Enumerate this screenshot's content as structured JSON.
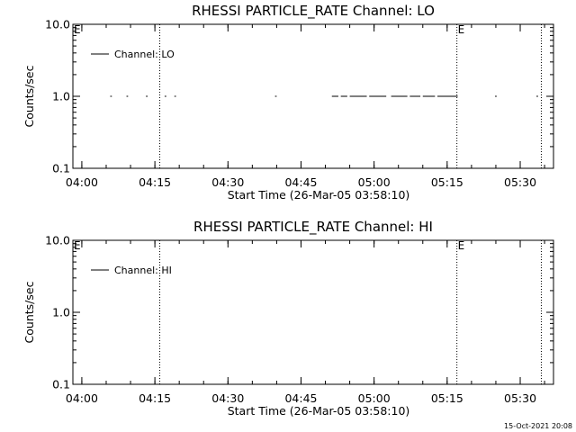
{
  "chart_data": [
    {
      "type": "line",
      "title": "RHESSI PARTICLE_RATE Channel: LO",
      "xlabel": "Start Time (26-Mar-05 03:58:10)",
      "ylabel": "Counts/sec",
      "y_scale": "log",
      "ylim": [
        0.1,
        10.0
      ],
      "xlim": [
        "03:58:10",
        "05:36:50"
      ],
      "xticks": [
        "04:00",
        "04:15",
        "04:30",
        "04:45",
        "05:00",
        "05:15",
        "05:30"
      ],
      "yticks": [
        "0.1",
        "1.0",
        "10.0"
      ],
      "legend": "top-left",
      "grid": false,
      "series": [
        {
          "name": "Channel: LO",
          "color": "#000000",
          "segments": [
            [
              [
                "04:05:50",
                1.0
              ],
              [
                "04:06:10",
                1.0
              ]
            ],
            [
              [
                "04:09:10",
                1.0
              ],
              [
                "04:09:30",
                1.0
              ]
            ],
            [
              [
                "04:13:10",
                1.0
              ],
              [
                "04:13:30",
                1.0
              ]
            ],
            [
              [
                "04:17:00",
                1.0
              ],
              [
                "04:17:20",
                1.0
              ]
            ],
            [
              [
                "04:19:00",
                1.0
              ],
              [
                "04:19:20",
                1.0
              ]
            ],
            [
              [
                "04:39:40",
                1.0
              ],
              [
                "04:40:00",
                1.0
              ]
            ],
            [
              [
                "04:51:20",
                1.0
              ],
              [
                "04:52:40",
                1.0
              ]
            ],
            [
              [
                "04:53:10",
                1.0
              ],
              [
                "04:54:30",
                1.0
              ]
            ],
            [
              [
                "04:55:00",
                1.0
              ],
              [
                "04:58:30",
                1.0
              ]
            ],
            [
              [
                "04:59:00",
                1.0
              ],
              [
                "05:02:30",
                1.0
              ]
            ],
            [
              [
                "05:03:30",
                1.0
              ],
              [
                "05:06:50",
                1.0
              ]
            ],
            [
              [
                "05:07:20",
                1.0
              ],
              [
                "05:09:30",
                1.0
              ]
            ],
            [
              [
                "05:10:00",
                1.0
              ],
              [
                "05:12:30",
                1.0
              ]
            ],
            [
              [
                "05:13:00",
                1.0
              ],
              [
                "05:17:10",
                1.0
              ]
            ],
            [
              [
                "05:24:50",
                1.0
              ],
              [
                "05:25:10",
                1.0
              ]
            ],
            [
              [
                "05:33:20",
                1.0
              ],
              [
                "05:33:40",
                1.0
              ]
            ]
          ]
        }
      ],
      "event_lines": [
        "04:16:00",
        "05:17:00",
        "05:34:20"
      ],
      "event_flags": [
        {
          "label": "E",
          "x": "03:58:10"
        },
        {
          "label": "E",
          "x": "05:17:00"
        }
      ]
    },
    {
      "type": "line",
      "title": "RHESSI PARTICLE_RATE Channel: HI",
      "xlabel": "Start Time (26-Mar-05 03:58:10)",
      "ylabel": "Counts/sec",
      "y_scale": "log",
      "ylim": [
        0.1,
        10.0
      ],
      "xlim": [
        "03:58:10",
        "05:36:50"
      ],
      "xticks": [
        "04:00",
        "04:15",
        "04:30",
        "04:45",
        "05:00",
        "05:15",
        "05:30"
      ],
      "yticks": [
        "0.1",
        "1.0",
        "10.0"
      ],
      "legend": "top-left",
      "grid": false,
      "series": [
        {
          "name": "Channel: HI",
          "color": "#000000",
          "segments": []
        }
      ],
      "event_lines": [
        "04:16:00",
        "05:17:00",
        "05:34:20"
      ],
      "event_flags": [
        {
          "label": "E",
          "x": "03:58:10"
        },
        {
          "label": "E",
          "x": "05:17:00"
        }
      ]
    }
  ],
  "footer": {
    "timestamp": "15-Oct-2021 20:08"
  }
}
